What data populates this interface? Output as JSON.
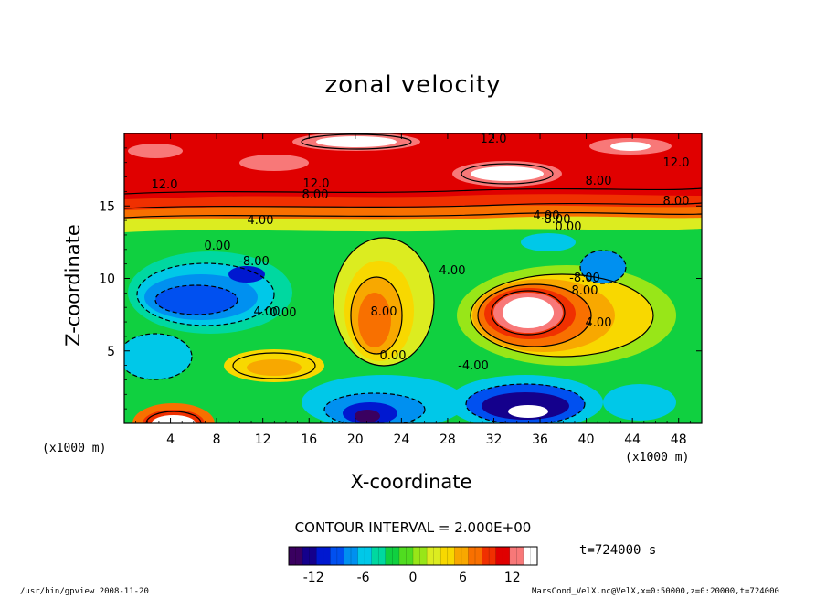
{
  "chart_data": {
    "type": "heatmap",
    "title": "zonal velocity",
    "xlabel": "X-coordinate",
    "ylabel": "Z-coordinate",
    "x_unit_label": "(x1000 m)",
    "x_ticks": [
      "4",
      "8",
      "12",
      "16",
      "20",
      "24",
      "28",
      "32",
      "36",
      "40",
      "44",
      "48"
    ],
    "y_ticks": [
      "5",
      "10",
      "15"
    ],
    "xlim": [
      0,
      50
    ],
    "ylim": [
      0,
      20
    ],
    "contour_interval_text": "CONTOUR INTERVAL = 2.000E+00",
    "colorbar_ticks": [
      "-12",
      "-6",
      "0",
      "6",
      "12"
    ],
    "colorbar_range": [
      -15,
      15
    ],
    "colors": [
      "#3a0060",
      "#14008c",
      "#0018d0",
      "#0050f0",
      "#0090f0",
      "#00c8e8",
      "#00d8a0",
      "#10d040",
      "#50dc20",
      "#98e618",
      "#dcec20",
      "#f8d800",
      "#f8a800",
      "#f87000",
      "#f03000",
      "#e00000",
      "#f87878",
      "#ffffff"
    ],
    "contour_labels": [
      "12.0",
      "12.0",
      "12.0",
      "12.0",
      "8.00",
      "8.00",
      "8.00",
      "8.00",
      "8.00",
      "8.00",
      "4.00",
      "4.00",
      "4.00",
      "4.00",
      "4.00",
      "0.00",
      "0.00",
      "0.00",
      "0.00",
      "-4.00",
      "-8.00",
      "-8.00"
    ],
    "time_label": "t=724000 s",
    "footer_left": "/usr/bin/gpview  2008-11-20",
    "footer_right": "MarsCond_VelX.nc@VelX,x=0:50000,z=0:20000,t=724000"
  }
}
